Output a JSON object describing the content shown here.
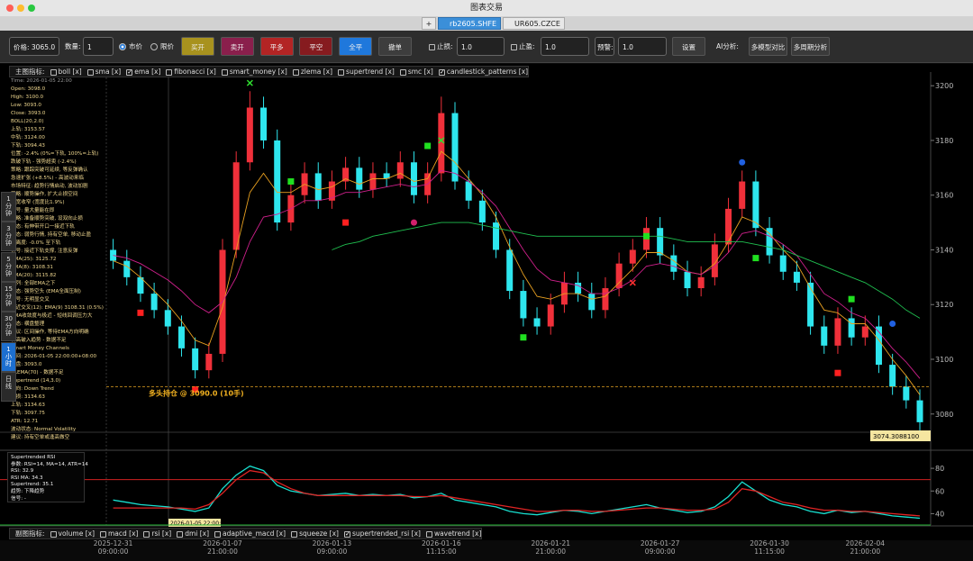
{
  "window": {
    "title": "图表交易"
  },
  "tabs": {
    "add": "+",
    "items": [
      {
        "label": "rb2605.SHFE",
        "active": true
      },
      {
        "label": "UR605.CZCE",
        "active": false
      }
    ]
  },
  "toolbar": {
    "price": "价格: 3065.0",
    "qty_label": "数量:",
    "qty": "1",
    "order_types": [
      {
        "label": "市价",
        "selected": true
      },
      {
        "label": "限价",
        "selected": false
      }
    ],
    "buttons": [
      {
        "label": "买开",
        "color": "#a8921e"
      },
      {
        "label": "卖开",
        "color": "#8a1f4c"
      },
      {
        "label": "平多",
        "color": "#b32424"
      },
      {
        "label": "平空",
        "color": "#861b1f"
      },
      {
        "label": "全平",
        "color": "#1f78dc"
      },
      {
        "label": "撤单",
        "color": "#3d3d3d"
      }
    ],
    "stop_loss": {
      "label": "止损:",
      "value": "1.0",
      "checked": false
    },
    "take_profit": {
      "label": "止盈:",
      "value": "1.0",
      "checked": false
    },
    "alert": {
      "label": "预警:",
      "value": "1.0"
    },
    "settings": "设置",
    "ai_label": "AI分析:",
    "ai_buttons": [
      "多模型对比",
      "多周期分析"
    ]
  },
  "main_indicators": {
    "label": "主图指标:",
    "items": [
      {
        "label": "boll [x]",
        "checked": false
      },
      {
        "label": "sma [x]",
        "checked": false
      },
      {
        "label": "ema [x]",
        "checked": true
      },
      {
        "label": "fibonacci [x]",
        "checked": false
      },
      {
        "label": "smart_money [x]",
        "checked": false
      },
      {
        "label": "zlema [x]",
        "checked": false
      },
      {
        "label": "supertrend [x]",
        "checked": false
      },
      {
        "label": "smc [x]",
        "checked": false
      },
      {
        "label": "candlestick_patterns [x]",
        "checked": true
      }
    ]
  },
  "sub_indicators": {
    "label": "副图指标:",
    "items": [
      {
        "label": "volume [x]",
        "checked": false
      },
      {
        "label": "macd [x]",
        "checked": false
      },
      {
        "label": "rsi [x]",
        "checked": false
      },
      {
        "label": "dmi [x]",
        "checked": false
      },
      {
        "label": "adaptive_macd [x]",
        "checked": false
      },
      {
        "label": "squeeze [x]",
        "checked": false
      },
      {
        "label": "supertrended_rsi [x]",
        "checked": true
      },
      {
        "label": "wavetrend [x]",
        "checked": false
      }
    ]
  },
  "timeframes": [
    {
      "label": "1分钟",
      "active": false
    },
    {
      "label": "3分钟",
      "active": false
    },
    {
      "label": "5分钟",
      "active": false
    },
    {
      "label": "15分钟",
      "active": false
    },
    {
      "label": "30分钟",
      "active": false
    },
    {
      "label": "1小时",
      "active": true
    },
    {
      "label": "日线",
      "active": false
    }
  ],
  "info_lines": [
    "Time: 2026-01-05 22:00",
    "Open: 3098.0",
    "High: 3100.0",
    "Low: 3093.0",
    "Close: 3093.0",
    "BOLL(20,2.0)",
    "上轨: 3153.57",
    "中轨: 3124.00",
    "下轨: 3094.43",
    "位置: -2.4% (0%=下轨, 100%=上轨)",
    "跌破下轨 - 强势超卖 (-2.4%)",
    "策略: 跟踪突破可延续, 等反弹确认",
    "急速扩张 (+8.5%) - 高波动来临",
    "市场特征: 趋势行情启动, 波动加剧",
    "策略: 顺势操作, 扩大止损空间",
    "带宽收窄 (宽度比1.9%)",
    "信号: 量大量能在即",
    "策略: 准备顺势突破, 设双向止损",
    "形态: 有伸带开口一接近下轨",
    "形态: 弱势行情, 持有空单, 移动止盈",
    "偏离度: -0.0% 至下轨",
    "信号: 接近下轨支撑, 注意反弹",
    "EMA(25): 3125.72",
    "EMA(8): 3108.31",
    "EMA(20): 3115.82",
    "排列: 全部EMA之下",
    "形态: 强势空头 (EMA全面压制)",
    "信号: 无明显交叉",
    "最近交叉(12): EMA(9) 3108.31 (0.5%)",
    "EMA收敛度与极近 - 短线回调压力大",
    "形态: 横盘整理",
    "建议: 区间操作, 等待EMA方向明确",
    "新高破入趋势 - 数据不足",
    "Smart Money Channels",
    "时间: 2026-01-05 22:00:00+08:00",
    "收盘: 3093.0",
    "ZLEMA(70) - 数据不足",
    "Supertrend (14,3.0)",
    "方向: Down Trend",
    "止损: 3134.63",
    "上轨: 3134.63",
    "下轨: 3097.75",
    "ATR: 12.71",
    "波动状态: Normal Volatility",
    "建议: 持有空单或逢高做空"
  ],
  "sub_info_lines": [
    "Supertrended RSI",
    "参数: RSI=14, MA=14, ATR=14",
    "RSI: 32.9",
    "RSI MA: 34.3",
    "Supertrend: 35.1",
    "趋势: 下降趋势",
    "信号: -"
  ],
  "chart_data": [
    {
      "type": "candlestick",
      "categories": [
        "2025-12-31\n09:00:00",
        null,
        null,
        null,
        null,
        null,
        null,
        null,
        "2026-01-07\n21:00:00",
        null,
        null,
        null,
        null,
        null,
        null,
        null,
        "2026-01-13\n09:00:00",
        null,
        null,
        null,
        null,
        null,
        null,
        null,
        "2026-01-16\n11:15:00",
        null,
        null,
        null,
        null,
        null,
        null,
        null,
        "2026-01-21\n21:00:00",
        null,
        null,
        null,
        null,
        null,
        null,
        null,
        "2026-01-27\n09:00:00",
        null,
        null,
        null,
        null,
        null,
        null,
        null,
        "2026-01-30\n11:15:00",
        null,
        null,
        null,
        null,
        null,
        null,
        "2026-02-04\n21:00:00",
        null,
        null,
        null,
        null
      ],
      "open": [
        3140,
        3136,
        3130,
        3124,
        3118,
        3112,
        3104,
        3096,
        3102,
        3140,
        3172,
        3192,
        3180,
        3150,
        3160,
        3168,
        3158,
        3165,
        3170,
        3162,
        3168,
        3166,
        3172,
        3160,
        3168,
        3190,
        3165,
        3158,
        3150,
        3140,
        3125,
        3115,
        3112,
        3120,
        3128,
        3124,
        3118,
        3126,
        3135,
        3140,
        3148,
        3138,
        3132,
        3126,
        3130,
        3142,
        3155,
        3165,
        3148,
        3138,
        3132,
        3128,
        3112,
        3105,
        3115,
        3108,
        3112,
        3098,
        3090,
        3085
      ],
      "high": [
        3144,
        3140,
        3134,
        3128,
        3122,
        3116,
        3108,
        3106,
        3144,
        3176,
        3198,
        3196,
        3184,
        3164,
        3172,
        3172,
        3169,
        3174,
        3174,
        3172,
        3172,
        3176,
        3176,
        3172,
        3196,
        3194,
        3169,
        3162,
        3154,
        3144,
        3129,
        3119,
        3124,
        3132,
        3132,
        3128,
        3130,
        3139,
        3144,
        3152,
        3152,
        3142,
        3136,
        3134,
        3146,
        3159,
        3169,
        3169,
        3152,
        3142,
        3136,
        3132,
        3116,
        3119,
        3119,
        3116,
        3116,
        3102,
        3094,
        3089
      ],
      "low": [
        3133,
        3127,
        3121,
        3115,
        3109,
        3101,
        3093,
        3093,
        3099,
        3137,
        3169,
        3177,
        3147,
        3147,
        3157,
        3155,
        3155,
        3162,
        3159,
        3159,
        3163,
        3163,
        3157,
        3157,
        3165,
        3162,
        3155,
        3147,
        3137,
        3122,
        3112,
        3109,
        3109,
        3117,
        3121,
        3115,
        3115,
        3123,
        3132,
        3137,
        3135,
        3129,
        3123,
        3123,
        3127,
        3139,
        3152,
        3145,
        3135,
        3129,
        3125,
        3109,
        3102,
        3102,
        3105,
        3105,
        3095,
        3087,
        3082,
        3074
      ],
      "close": [
        3136,
        3130,
        3124,
        3118,
        3112,
        3104,
        3096,
        3102,
        3140,
        3172,
        3192,
        3180,
        3150,
        3160,
        3168,
        3158,
        3165,
        3170,
        3162,
        3168,
        3166,
        3172,
        3160,
        3168,
        3190,
        3165,
        3158,
        3150,
        3140,
        3125,
        3115,
        3112,
        3120,
        3128,
        3124,
        3118,
        3126,
        3135,
        3140,
        3148,
        3138,
        3132,
        3126,
        3130,
        3142,
        3155,
        3165,
        3148,
        3138,
        3132,
        3128,
        3112,
        3105,
        3115,
        3108,
        3112,
        3098,
        3090,
        3085,
        3077
      ],
      "up_color": "#f0303a",
      "down_color": "#2ee6ee",
      "ylim": [
        3074,
        3205
      ],
      "yticks": [
        3080,
        3100,
        3120,
        3140,
        3160,
        3180,
        3200
      ],
      "lines": [
        {
          "color": "#e8a020",
          "values": [
            3136,
            3134,
            3130,
            3125,
            3120,
            3114,
            3107,
            3105,
            3119,
            3140,
            3161,
            3168,
            3161,
            3161,
            3164,
            3162,
            3163,
            3166,
            3164,
            3166,
            3166,
            3168,
            3165,
            3166,
            3176,
            3172,
            3166,
            3160,
            3152,
            3141,
            3131,
            3123,
            3122,
            3124,
            3124,
            3122,
            3123,
            3128,
            3133,
            3139,
            3139,
            3136,
            3132,
            3131,
            3135,
            3143,
            3152,
            3150,
            3146,
            3140,
            3135,
            3126,
            3118,
            3117,
            3113,
            3113,
            3107,
            3100,
            3094,
            3087
          ]
        },
        {
          "color": "#d0208c",
          "values": [
            3138,
            3137,
            3135,
            3132,
            3129,
            3125,
            3120,
            3117,
            3121,
            3130,
            3143,
            3152,
            3153,
            3155,
            3158,
            3158,
            3159,
            3161,
            3161,
            3162,
            3163,
            3164,
            3163,
            3164,
            3169,
            3168,
            3165,
            3161,
            3156,
            3148,
            3140,
            3133,
            3129,
            3128,
            3127,
            3124,
            3124,
            3126,
            3129,
            3134,
            3135,
            3134,
            3132,
            3131,
            3134,
            3139,
            3146,
            3147,
            3145,
            3142,
            3138,
            3131,
            3124,
            3121,
            3117,
            3115,
            3110,
            3104,
            3099,
            3093
          ]
        },
        {
          "color": "#20c050",
          "values": [
            null,
            null,
            null,
            null,
            null,
            null,
            null,
            null,
            null,
            null,
            null,
            null,
            null,
            null,
            null,
            null,
            3140,
            3142,
            3143,
            3145,
            3146,
            3147,
            3148,
            3149,
            3150,
            3150,
            3150,
            3149,
            3148,
            3147,
            3146,
            3145,
            3145,
            3145,
            3145,
            3145,
            3145,
            3145,
            3145,
            3145,
            3145,
            3144,
            3143,
            3143,
            3143,
            3143,
            3143,
            3142,
            3141,
            3140,
            3138,
            3136,
            3134,
            3132,
            3130,
            3128,
            3125,
            3122,
            3118,
            3115
          ]
        }
      ],
      "markers": [
        {
          "index": 2,
          "price": 3117,
          "shape": "square",
          "color": "#ff2020"
        },
        {
          "index": 6,
          "price": 3089,
          "shape": "square",
          "color": "#ff2020"
        },
        {
          "index": 10,
          "price": 3201,
          "shape": "x",
          "color": "#30e030"
        },
        {
          "index": 13,
          "price": 3165,
          "shape": "square",
          "color": "#20e020"
        },
        {
          "index": 17,
          "price": 3150,
          "shape": "square",
          "color": "#ff2020"
        },
        {
          "index": 22,
          "price": 3150,
          "shape": "circle",
          "color": "#d0206c"
        },
        {
          "index": 23,
          "price": 3178,
          "shape": "square",
          "color": "#20e020"
        },
        {
          "index": 24,
          "price": 3180,
          "shape": "x",
          "color": "#30e030"
        },
        {
          "index": 30,
          "price": 3108,
          "shape": "square",
          "color": "#20e020"
        },
        {
          "index": 38,
          "price": 3128,
          "shape": "x",
          "color": "#ff3030"
        },
        {
          "index": 39,
          "price": 3145,
          "shape": "square",
          "color": "#20e020"
        },
        {
          "index": 46,
          "price": 3172,
          "shape": "circle",
          "color": "#2060e0"
        },
        {
          "index": 47,
          "price": 3137,
          "shape": "square",
          "color": "#20e020"
        },
        {
          "index": 53,
          "price": 3095,
          "shape": "square",
          "color": "#ff2020"
        },
        {
          "index": 54,
          "price": 3122,
          "shape": "square",
          "color": "#20e020"
        },
        {
          "index": 57,
          "price": 3113,
          "shape": "circle",
          "color": "#2060e0"
        }
      ],
      "position_label": "多头持仓 @ 3090.0 (10手)",
      "position_price": 3090,
      "last_price_label": "3074.3088100",
      "crosshair_time": "2026-01-05 22:00:00"
    },
    {
      "type": "line",
      "ylim": [
        30,
        92
      ],
      "yticks": [
        40,
        60,
        80
      ],
      "series": [
        {
          "color": "#18e0d0",
          "values": [
            52,
            50,
            48,
            47,
            46,
            44,
            42,
            45,
            62,
            74,
            82,
            78,
            65,
            60,
            58,
            56,
            57,
            58,
            56,
            57,
            56,
            57,
            54,
            55,
            58,
            52,
            50,
            48,
            46,
            42,
            40,
            39,
            41,
            43,
            42,
            40,
            42,
            44,
            46,
            48,
            45,
            43,
            41,
            42,
            46,
            55,
            68,
            60,
            52,
            48,
            46,
            42,
            40,
            43,
            41,
            42,
            40,
            38,
            37,
            36
          ]
        },
        {
          "color": "#e02424",
          "values": [
            45,
            45,
            45,
            45,
            45,
            45,
            44,
            48,
            58,
            70,
            78,
            76,
            68,
            62,
            58,
            56,
            56,
            56,
            56,
            56,
            56,
            56,
            55,
            55,
            56,
            54,
            52,
            50,
            48,
            46,
            44,
            42,
            42,
            43,
            43,
            42,
            42,
            43,
            44,
            45,
            45,
            44,
            43,
            43,
            44,
            50,
            62,
            60,
            55,
            50,
            48,
            45,
            43,
            43,
            42,
            42,
            41,
            40,
            39,
            38
          ]
        }
      ],
      "thresholds": [
        {
          "value": 70,
          "color": "#d02020"
        },
        {
          "value": 30,
          "color": "#20b030"
        }
      ]
    }
  ]
}
